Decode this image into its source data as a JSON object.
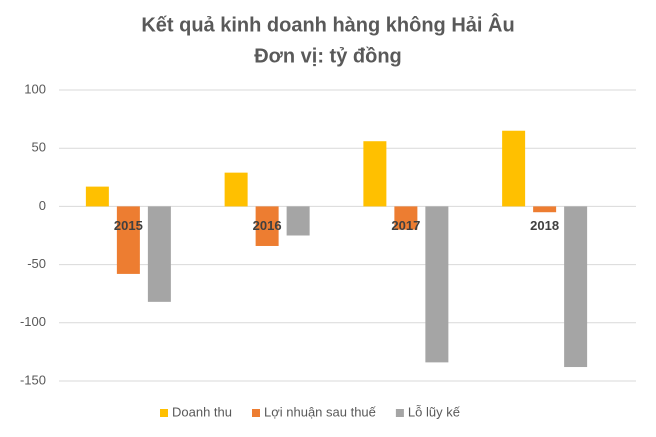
{
  "chart_data": {
    "type": "bar",
    "title": "Kết quả kinh doanh hàng không Hải Âu",
    "subtitle": "Đơn vị: tỷ đồng",
    "categories": [
      "2015",
      "2016",
      "2017",
      "2018"
    ],
    "series": [
      {
        "name": "Doanh thu",
        "color": "#ffc000",
        "values": [
          17,
          29,
          56,
          65
        ]
      },
      {
        "name": "Lợi nhuận sau thuế",
        "color": "#ed7d31",
        "values": [
          -58,
          -34,
          -20,
          -5
        ]
      },
      {
        "name": "Lỗ lũy kế",
        "color": "#a5a5a5",
        "values": [
          -82,
          -25,
          -134,
          -138
        ]
      }
    ],
    "ylim": [
      -150,
      100
    ],
    "yticks": [
      -150,
      -100,
      -50,
      0,
      50,
      100
    ],
    "grid": true,
    "legend": "bottom"
  }
}
